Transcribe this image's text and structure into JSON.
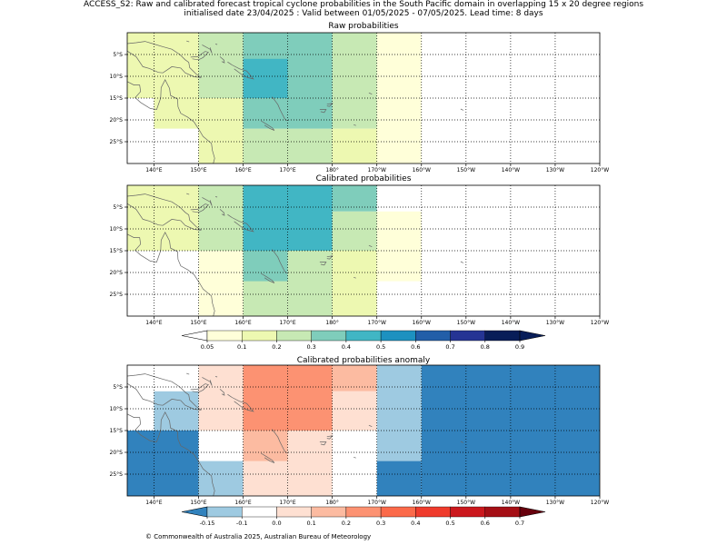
{
  "header": {
    "title_line1": "ACCESS_S2: Raw and calibrated forecast tropical cyclone probabilities in the South Pacific domain in overlapping 15 x 20 degree regions",
    "title_line2": "initialised date 23/04/2025 :  Valid between 01/05/2025 - 07/05/2025. Lead time: 8 days"
  },
  "footer": {
    "copyright": "© Commonwealth of Australia 2025, Australian Bureau of Meteorology"
  },
  "chart_data": [
    {
      "type": "heatmap",
      "title": "Raw probabilities",
      "lon_range": [
        134,
        240
      ],
      "lat_range": [
        -30,
        0
      ],
      "x_ticks": [
        140,
        150,
        160,
        170,
        180,
        190,
        200,
        210,
        220,
        230,
        240
      ],
      "x_tick_labels": [
        "140°E",
        "150°E",
        "160°E",
        "170°E",
        "180°",
        "170°W",
        "160°W",
        "150°W",
        "140°W",
        "130°W",
        "120°W"
      ],
      "y_ticks": [
        -5,
        -10,
        -15,
        -20,
        -25
      ],
      "y_tick_labels": [
        "5°S",
        "10°S",
        "15°S",
        "20°S",
        "25°S"
      ],
      "grid": true,
      "cells": [
        {
          "lon": [
            134,
            150
          ],
          "lat": [
            -15,
            0
          ],
          "value": 0.15
        },
        {
          "lon": [
            140,
            150
          ],
          "lat": [
            -22,
            -15
          ],
          "value": 0.15
        },
        {
          "lon": [
            150,
            160
          ],
          "lat": [
            -30,
            -15
          ],
          "value": 0.15
        },
        {
          "lon": [
            190,
            200
          ],
          "lat": [
            -30,
            0
          ],
          "value": 0.07
        },
        {
          "lon": [
            150,
            160
          ],
          "lat": [
            -15,
            0
          ],
          "value": 0.25
        },
        {
          "lon": [
            180,
            190
          ],
          "lat": [
            -22,
            0
          ],
          "value": 0.25
        },
        {
          "lon": [
            160,
            180
          ],
          "lat": [
            -30,
            -22
          ],
          "value": 0.25
        },
        {
          "lon": [
            180,
            190
          ],
          "lat": [
            -30,
            -22
          ],
          "value": 0.15
        },
        {
          "lon": [
            160,
            180
          ],
          "lat": [
            -22,
            0
          ],
          "value": 0.35
        },
        {
          "lon": [
            160,
            170
          ],
          "lat": [
            -15,
            -6
          ],
          "value": 0.45
        }
      ]
    },
    {
      "type": "heatmap",
      "title": "Calibrated probabilities",
      "lon_range": [
        134,
        240
      ],
      "lat_range": [
        -30,
        0
      ],
      "x_ticks": [
        140,
        150,
        160,
        170,
        180,
        190,
        200,
        210,
        220,
        230,
        240
      ],
      "x_tick_labels": [
        "140°E",
        "150°E",
        "160°E",
        "170°E",
        "180°",
        "170°W",
        "160°W",
        "150°W",
        "140°W",
        "130°W",
        "120°W"
      ],
      "y_ticks": [
        -5,
        -10,
        -15,
        -20,
        -25
      ],
      "y_tick_labels": [
        "5°S",
        "10°S",
        "15°S",
        "20°S",
        "25°S"
      ],
      "grid": true,
      "cells": [
        {
          "lon": [
            134,
            150
          ],
          "lat": [
            -15,
            0
          ],
          "value": 0.15
        },
        {
          "lon": [
            150,
            160
          ],
          "lat": [
            -30,
            -15
          ],
          "value": 0.07
        },
        {
          "lon": [
            160,
            170
          ],
          "lat": [
            -30,
            -15
          ],
          "value": 0.25
        },
        {
          "lon": [
            170,
            180
          ],
          "lat": [
            -30,
            -15
          ],
          "value": 0.25
        },
        {
          "lon": [
            180,
            190
          ],
          "lat": [
            -30,
            -15
          ],
          "value": 0.15
        },
        {
          "lon": [
            190,
            200
          ],
          "lat": [
            -22,
            -6
          ],
          "value": 0.07
        },
        {
          "lon": [
            150,
            160
          ],
          "lat": [
            -15,
            0
          ],
          "value": 0.25
        },
        {
          "lon": [
            180,
            190
          ],
          "lat": [
            -6,
            0
          ],
          "value": 0.35
        },
        {
          "lon": [
            160,
            180
          ],
          "lat": [
            -15,
            0
          ],
          "value": 0.45
        },
        {
          "lon": [
            180,
            190
          ],
          "lat": [
            -15,
            -6
          ],
          "value": 0.25
        },
        {
          "lon": [
            160,
            170
          ],
          "lat": [
            -22,
            -15
          ],
          "value": 0.35
        }
      ]
    },
    {
      "type": "heatmap",
      "title": "Calibrated probabilities anomaly",
      "lon_range": [
        134,
        240
      ],
      "lat_range": [
        -30,
        0
      ],
      "x_ticks": [
        140,
        150,
        160,
        170,
        180,
        190,
        200,
        210,
        220,
        230,
        240
      ],
      "x_tick_labels": [
        "140°E",
        "150°E",
        "160°E",
        "170°E",
        "180°",
        "170°W",
        "160°W",
        "150°W",
        "140°W",
        "130°W",
        "120°W"
      ],
      "y_ticks": [
        -5,
        -10,
        -15,
        -20,
        -25
      ],
      "y_tick_labels": [
        "5°S",
        "10°S",
        "15°S",
        "20°S",
        "25°S"
      ],
      "grid": true,
      "cells": [
        {
          "lon": [
            134,
            150
          ],
          "lat": [
            -30,
            -15
          ],
          "value": -0.2
        },
        {
          "lon": [
            140,
            150
          ],
          "lat": [
            -15,
            -6
          ],
          "value": -0.12
        },
        {
          "lon": [
            150,
            160
          ],
          "lat": [
            -15,
            0
          ],
          "value": 0.05
        },
        {
          "lon": [
            150,
            160
          ],
          "lat": [
            -30,
            -22
          ],
          "value": -0.12
        },
        {
          "lon": [
            160,
            180
          ],
          "lat": [
            -30,
            -15
          ],
          "value": 0.05
        },
        {
          "lon": [
            160,
            170
          ],
          "lat": [
            -22,
            -15
          ],
          "value": 0.15
        },
        {
          "lon": [
            160,
            180
          ],
          "lat": [
            -15,
            0
          ],
          "value": 0.25
        },
        {
          "lon": [
            180,
            190
          ],
          "lat": [
            -6,
            0
          ],
          "value": 0.15
        },
        {
          "lon": [
            180,
            190
          ],
          "lat": [
            -15,
            -6
          ],
          "value": 0.05
        },
        {
          "lon": [
            190,
            200
          ],
          "lat": [
            -22,
            0
          ],
          "value": -0.12
        },
        {
          "lon": [
            190,
            200
          ],
          "lat": [
            -30,
            -22
          ],
          "value": -0.2
        },
        {
          "lon": [
            200,
            240
          ],
          "lat": [
            -30,
            0
          ],
          "value": -0.2
        }
      ]
    }
  ],
  "colorbars": {
    "probability": {
      "boundaries": [
        0.05,
        0.1,
        0.2,
        0.3,
        0.4,
        0.5,
        0.6,
        0.7,
        0.8,
        0.9
      ],
      "labels": [
        "0.05",
        "0.1",
        "0.2",
        "0.3",
        "0.4",
        "0.5",
        "0.6",
        "0.7",
        "0.8",
        "0.9"
      ],
      "under_color": "#ffffff",
      "colors": [
        "#ffffd9",
        "#edf8b1",
        "#c7e9b4",
        "#7fcdbb",
        "#41b6c4",
        "#1d91c0",
        "#225ea8",
        "#253494",
        "#081d58"
      ],
      "over_color": "#081d58"
    },
    "anomaly": {
      "boundaries": [
        -0.15,
        -0.1,
        0.0,
        0.1,
        0.2,
        0.3,
        0.4,
        0.5,
        0.6,
        0.7
      ],
      "labels": [
        "-0.15",
        "-0.1",
        "0.0",
        "0.1",
        "0.2",
        "0.3",
        "0.4",
        "0.5",
        "0.6",
        "0.7"
      ],
      "under_color": "#3182bd",
      "colors": [
        "#9ecae1",
        "#ffffff",
        "#fee0d2",
        "#fcbba1",
        "#fc9272",
        "#fb6a4a",
        "#ef3b2c",
        "#cb181d",
        "#a50f15"
      ],
      "over_color": "#67000d"
    }
  }
}
